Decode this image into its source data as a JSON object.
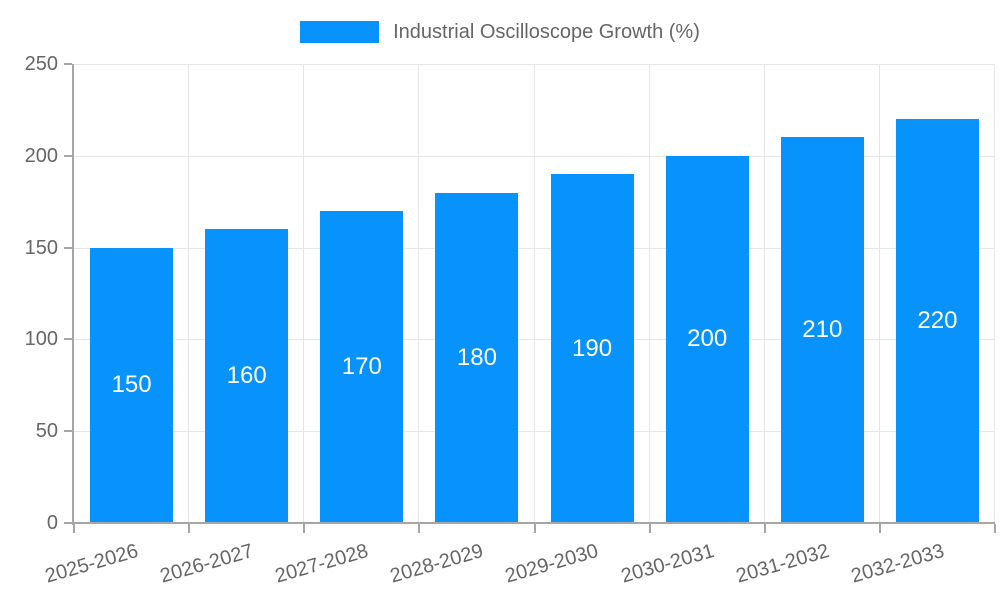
{
  "chart_data": {
    "type": "bar",
    "legend": {
      "label": "Industrial Oscilloscope Growth (%)",
      "position": "top"
    },
    "categories": [
      "2025-2026",
      "2026-2027",
      "2027-2028",
      "2028-2029",
      "2029-2030",
      "2030-2031",
      "2031-2032",
      "2032-2033"
    ],
    "values": [
      150,
      160,
      170,
      180,
      190,
      200,
      210,
      220
    ],
    "data_labels": [
      150,
      160,
      170,
      180,
      190,
      200,
      210,
      220
    ],
    "xlabel": "",
    "ylabel": "",
    "ylim": [
      0,
      250
    ],
    "yticks": [
      0,
      50,
      100,
      150,
      200,
      250
    ],
    "grid": true,
    "x_label_rotation_deg": -16
  },
  "colors": {
    "bar": "#0892fb",
    "grid": "#e6e6e6",
    "axis": "#a6a6a6",
    "text": "#666666",
    "bar_label": "#ffffff",
    "background": "#ffffff"
  }
}
